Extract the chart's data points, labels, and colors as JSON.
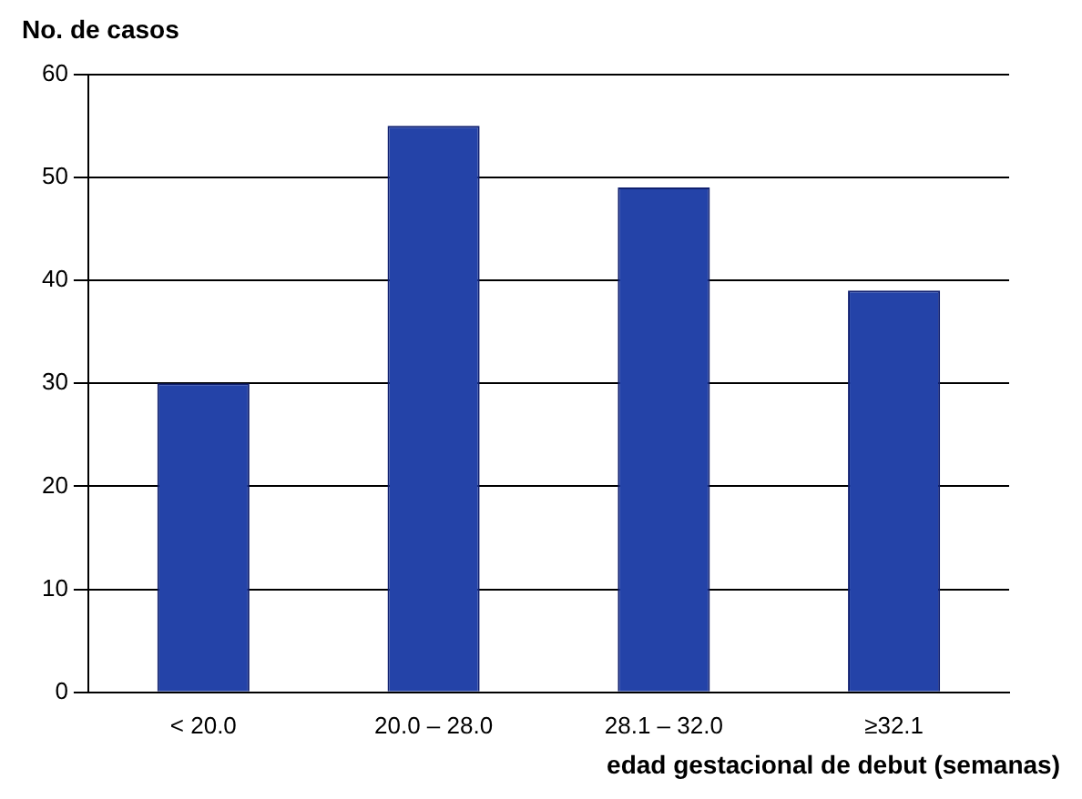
{
  "chart_data": {
    "type": "bar",
    "ylabel": "No. de casos",
    "xlabel": "edad gestacional de debut (semanas)",
    "categories": [
      "< 20.0",
      "20.0 – 28.0",
      "28.1 – 32.0",
      "≥32.1"
    ],
    "values": [
      30,
      55,
      49,
      39
    ],
    "color": "#2443a8",
    "ylim": [
      0,
      60
    ],
    "yticks": [
      0,
      10,
      20,
      30,
      40,
      50,
      60
    ],
    "grid": "y",
    "legend": false
  }
}
